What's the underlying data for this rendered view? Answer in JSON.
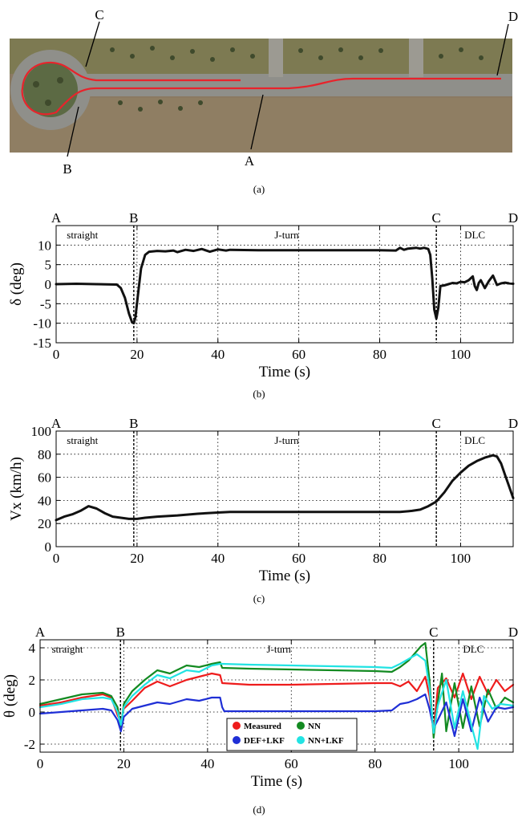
{
  "panels": {
    "a": {
      "caption": "(a)",
      "labels": [
        "C",
        "D",
        "B",
        "A"
      ],
      "colors": {
        "route": "#e8232b",
        "grass": "#6a6e4a",
        "road": "#8f8f8a",
        "dry": "#8b7a62"
      }
    },
    "b": {
      "caption": "(b)"
    },
    "c": {
      "caption": "(c)"
    },
    "d": {
      "caption": "(d)"
    }
  },
  "chart_data": [
    {
      "type": "line",
      "id": "steering",
      "title": "",
      "xlabel": "Time (s)",
      "ylabel": "δ (deg)",
      "xlim": [
        0,
        113
      ],
      "ylim": [
        -15,
        15
      ],
      "xticks": [
        0,
        20,
        40,
        60,
        80,
        100
      ],
      "yticks": [
        -15,
        -10,
        -5,
        0,
        5,
        10
      ],
      "grid": true,
      "markers": [
        {
          "label": "A",
          "x": 0
        },
        {
          "label": "B",
          "x": 19.2
        },
        {
          "label": "C",
          "x": 94
        },
        {
          "label": "D",
          "x": 113
        }
      ],
      "segments": [
        {
          "label": "straight",
          "x": 6.5
        },
        {
          "label": "J-turn",
          "x": 57
        },
        {
          "label": "DLC",
          "x": 103.5
        }
      ],
      "series": [
        {
          "name": "delta",
          "color": "#111111",
          "x": [
            0,
            5,
            10,
            15,
            16,
            17,
            18,
            18.8,
            19.2,
            19.6,
            20.2,
            21,
            22,
            23,
            25,
            27,
            29,
            30,
            32,
            34,
            36,
            38,
            40,
            42,
            43,
            50,
            60,
            70,
            80,
            84,
            85,
            86,
            87,
            88,
            89,
            90,
            91,
            92,
            92.5,
            93,
            93.5,
            94,
            94.5,
            95,
            96,
            97,
            98,
            99,
            100,
            101,
            102,
            103,
            103.5,
            104,
            104.5,
            105,
            106,
            107,
            108,
            109,
            110,
            111,
            112,
            113
          ],
          "y": [
            0,
            0.1,
            0,
            -0.1,
            -1,
            -3.5,
            -7.5,
            -9.8,
            -10,
            -8.5,
            -3,
            4,
            7.5,
            8.3,
            8.5,
            8.4,
            8.6,
            8.2,
            8.8,
            8.5,
            9,
            8.3,
            8.9,
            8.6,
            8.8,
            8.7,
            8.7,
            8.7,
            8.7,
            8.6,
            9.3,
            8.8,
            9.1,
            9.2,
            9.3,
            9.1,
            9.3,
            9,
            7.5,
            1.5,
            -6.5,
            -8.8,
            -6,
            -0.5,
            -0.3,
            0,
            0.3,
            0.2,
            0.6,
            0.5,
            1,
            2,
            -0.5,
            -1.5,
            0.3,
            1,
            -1,
            0.8,
            2.2,
            -0.2,
            0.2,
            0.4,
            0.2,
            0.1
          ]
        }
      ]
    },
    {
      "type": "line",
      "id": "speed",
      "title": "",
      "xlabel": "Time (s)",
      "ylabel": "Vx (km/h)",
      "xlim": [
        0,
        113
      ],
      "ylim": [
        0,
        100
      ],
      "xticks": [
        0,
        20,
        40,
        60,
        80,
        100
      ],
      "yticks": [
        0,
        20,
        40,
        60,
        80,
        100
      ],
      "grid": true,
      "markers": [
        {
          "label": "A",
          "x": 0
        },
        {
          "label": "B",
          "x": 19.2
        },
        {
          "label": "C",
          "x": 94
        },
        {
          "label": "D",
          "x": 113
        }
      ],
      "segments": [
        {
          "label": "straight",
          "x": 6.5
        },
        {
          "label": "J-turn",
          "x": 57
        },
        {
          "label": "DLC",
          "x": 103.5
        }
      ],
      "series": [
        {
          "name": "Vx",
          "color": "#111111",
          "x": [
            0,
            2,
            4,
            6,
            8,
            10,
            12,
            14,
            16,
            18,
            20,
            22,
            25,
            30,
            35,
            40,
            43,
            50,
            60,
            70,
            80,
            85,
            88,
            90,
            92,
            94,
            96,
            98,
            100,
            102,
            104,
            106,
            108,
            109,
            110,
            111,
            112,
            113
          ],
          "y": [
            23,
            26,
            28,
            31,
            35,
            33,
            29,
            26,
            25,
            24,
            24,
            25,
            26,
            27,
            28.5,
            29.5,
            30,
            30,
            30,
            30,
            30,
            30,
            31,
            32,
            35,
            39,
            47,
            57,
            64,
            70,
            74,
            77,
            79,
            78,
            72,
            62,
            52,
            42
          ]
        }
      ]
    },
    {
      "type": "line",
      "id": "pitch",
      "title": "",
      "xlabel": "Time (s)",
      "ylabel": "θ (deg)",
      "xlim": [
        0,
        113
      ],
      "ylim": [
        -2.5,
        4.5
      ],
      "xticks": [
        0,
        20,
        40,
        60,
        80,
        100
      ],
      "yticks": [
        -2,
        0,
        2,
        4
      ],
      "grid": true,
      "markers": [
        {
          "label": "A",
          "x": 0
        },
        {
          "label": "B",
          "x": 19.2
        },
        {
          "label": "C",
          "x": 94
        },
        {
          "label": "D",
          "x": 113
        }
      ],
      "segments": [
        {
          "label": "straight",
          "x": 6.5
        },
        {
          "label": "J-turn",
          "x": 57
        },
        {
          "label": "DLC",
          "x": 103.5
        }
      ],
      "legend": {
        "position": "bottom-center"
      },
      "series": [
        {
          "name": "Measured",
          "color": "#ee1c1c",
          "x": [
            0,
            5,
            10,
            15,
            17,
            18.5,
            19.3,
            20,
            22,
            25,
            28,
            31,
            35,
            38,
            41,
            43,
            43.5,
            50,
            60,
            70,
            80,
            84,
            86,
            88,
            90,
            92,
            93,
            94,
            95,
            97,
            99,
            101,
            103,
            105,
            107,
            109,
            111,
            113
          ],
          "y": [
            0.4,
            0.6,
            0.9,
            1.1,
            0.9,
            -0.2,
            -0.6,
            0.2,
            0.7,
            1.5,
            1.9,
            1.6,
            2,
            2.2,
            2.4,
            2.3,
            1.8,
            1.7,
            1.7,
            1.75,
            1.8,
            1.8,
            1.6,
            1.9,
            1.3,
            2.2,
            1,
            -1.2,
            1.5,
            2.1,
            0.9,
            2.4,
            0.8,
            2.2,
            1.1,
            2.0,
            1.3,
            1.7
          ]
        },
        {
          "name": "NN",
          "color": "#138a21",
          "x": [
            0,
            5,
            10,
            15,
            17,
            18.5,
            19.3,
            20,
            22,
            25,
            28,
            31,
            35,
            38,
            41,
            43,
            43.5,
            50,
            60,
            70,
            80,
            84,
            86,
            88,
            90,
            91,
            92,
            93,
            94,
            95,
            96,
            97,
            99,
            101,
            103,
            105,
            107,
            109,
            111,
            113
          ],
          "y": [
            0.5,
            0.8,
            1.1,
            1.2,
            1.0,
            0.3,
            -1.0,
            0.5,
            1.3,
            2.0,
            2.6,
            2.4,
            2.9,
            2.8,
            3.0,
            3.1,
            2.75,
            2.7,
            2.65,
            2.6,
            2.55,
            2.5,
            2.8,
            3.2,
            3.8,
            4.1,
            4.3,
            2.0,
            -1.6,
            0.6,
            2.4,
            -1.2,
            1.8,
            -1.0,
            1.6,
            -0.9,
            1.4,
            0.2,
            0.9,
            0.6
          ]
        },
        {
          "name": "DEF+LKF",
          "color": "#1f2fd6",
          "x": [
            0,
            5,
            10,
            15,
            17,
            18.5,
            19.3,
            20,
            22,
            25,
            28,
            31,
            35,
            38,
            41,
            43,
            43.5,
            44,
            50,
            60,
            70,
            80,
            84,
            86,
            88,
            90,
            92,
            93,
            94,
            95,
            97,
            99,
            101,
            103,
            105,
            107,
            109,
            111,
            113
          ],
          "y": [
            -0.1,
            0.0,
            0.1,
            0.2,
            0.1,
            -0.5,
            -1.2,
            -0.3,
            0.2,
            0.4,
            0.6,
            0.5,
            0.8,
            0.7,
            0.9,
            0.9,
            0.3,
            0.05,
            0.05,
            0.05,
            0.05,
            0.05,
            0.1,
            0.5,
            0.6,
            0.8,
            1.1,
            0.2,
            -1.0,
            -0.5,
            0.6,
            -1.5,
            0.8,
            -1.2,
            0.9,
            -0.6,
            0.3,
            0.2,
            0.3
          ]
        },
        {
          "name": "NN+LKF",
          "color": "#22e3e3",
          "x": [
            0,
            5,
            10,
            15,
            17,
            18.5,
            19.3,
            20,
            22,
            25,
            28,
            31,
            35,
            38,
            41,
            43,
            43.5,
            50,
            60,
            70,
            80,
            84,
            86,
            88,
            90,
            92,
            93,
            94,
            95,
            97,
            99,
            101,
            103,
            104.5,
            106,
            108,
            110,
            113
          ],
          "y": [
            0.3,
            0.5,
            0.8,
            0.9,
            0.8,
            0.0,
            -0.8,
            0.3,
            1.0,
            1.7,
            2.3,
            2.1,
            2.6,
            2.5,
            2.9,
            3.0,
            3.0,
            2.95,
            2.9,
            2.85,
            2.8,
            2.75,
            3.0,
            3.3,
            3.6,
            3.2,
            1.5,
            -1.3,
            0.4,
            2.0,
            -1.0,
            1.3,
            -0.8,
            -2.3,
            1.0,
            0.2,
            0.5,
            0.4
          ]
        }
      ]
    }
  ]
}
